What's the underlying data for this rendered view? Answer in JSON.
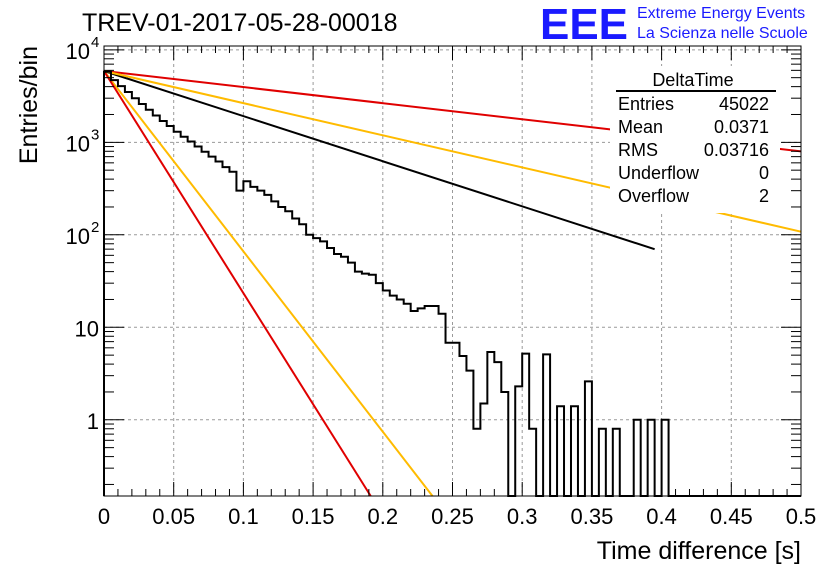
{
  "chart_data": {
    "type": "histogram",
    "title": "TREV-01-2017-05-28-00018",
    "xlabel": "Time difference [s]",
    "ylabel": "Entries/bin",
    "xlim": [
      0,
      0.5
    ],
    "ylim": [
      0.15,
      11000
    ],
    "y_scale": "log",
    "grid": true,
    "x_ticks": [
      "0",
      "0.05",
      "0.1",
      "0.15",
      "0.2",
      "0.25",
      "0.3",
      "0.35",
      "0.4",
      "0.45",
      "0.5"
    ],
    "y_ticks": [
      {
        "value": 1,
        "label": "1"
      },
      {
        "value": 10,
        "label": "10"
      },
      {
        "value": 100,
        "label": "10",
        "exp": "2"
      },
      {
        "value": 1000,
        "label": "10",
        "exp": "3"
      },
      {
        "value": 10000,
        "label": "10",
        "exp": "4"
      }
    ],
    "bin_width": 0.005,
    "histogram_counts": [
      5800,
      4700,
      4050,
      3500,
      3000,
      2600,
      2250,
      1950,
      1700,
      1500,
      1300,
      1150,
      1020,
      900,
      790,
      700,
      620,
      540,
      480,
      300,
      380,
      330,
      300,
      270,
      230,
      200,
      180,
      150,
      130,
      100,
      92,
      85,
      72,
      62,
      58,
      50,
      40,
      38,
      37,
      30,
      25,
      22,
      20,
      18,
      15,
      16,
      17,
      17,
      14,
      6.8,
      6.8,
      4.9,
      3.4,
      0.8,
      1.5,
      5.4,
      4.2,
      2.0,
      0,
      2.3,
      5.2,
      0.8,
      0,
      5.1,
      0,
      1.4,
      0,
      1.4,
      0,
      2.6,
      0,
      0.8,
      0,
      0.8,
      0,
      0,
      1,
      0,
      1,
      0,
      1,
      0,
      0,
      0,
      0,
      0,
      0,
      0,
      0,
      0,
      0,
      0,
      0,
      0,
      0,
      0,
      0,
      0,
      0,
      0
    ],
    "fit_curves": [
      {
        "color": "#000000",
        "start": 5900,
        "slope": -11.23,
        "x_end": 0.395
      },
      {
        "color": "#e00000",
        "start": 5900,
        "slope": -4.0,
        "x_end": 0.5
      },
      {
        "color": "#ffbb00",
        "start": 5900,
        "slope": -8.0,
        "x_end": 0.5
      },
      {
        "color": "#ffbb00",
        "start": 5900,
        "slope": -44.9,
        "x_end": 0.5
      },
      {
        "color": "#e00000",
        "start": 5900,
        "slope": -55.3,
        "x_end": 0.5
      }
    ]
  },
  "stats_box": {
    "title": "DeltaTime",
    "rows": [
      {
        "label": "Entries",
        "value": "45022"
      },
      {
        "label": "Mean",
        "value": "0.0371"
      },
      {
        "label": "RMS",
        "value": "0.03716"
      },
      {
        "label": "Underflow",
        "value": "0"
      },
      {
        "label": "Overflow",
        "value": "2"
      }
    ]
  },
  "logo": {
    "mark": "EEE",
    "line1": "Extreme Energy Events",
    "line2": "La Scienza nelle Scuole"
  }
}
